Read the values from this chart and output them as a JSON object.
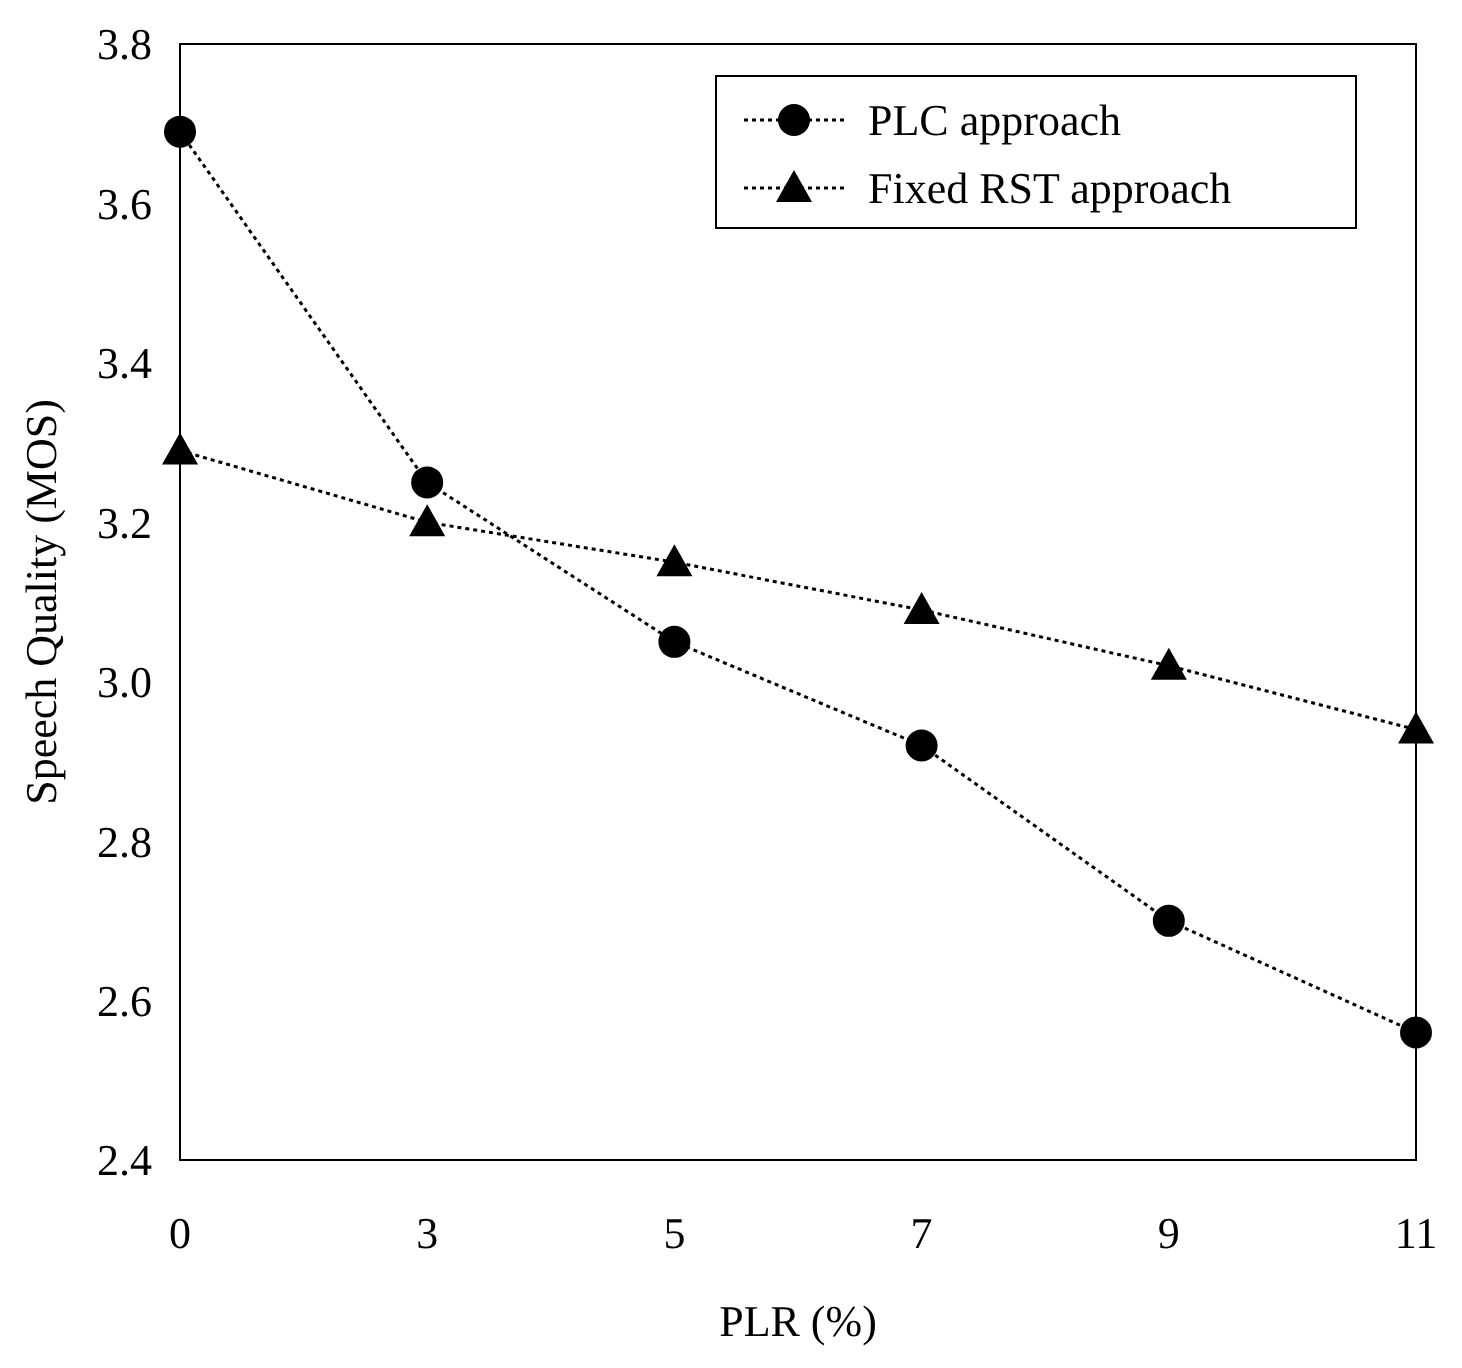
{
  "chart_data": {
    "type": "line",
    "xlabel": "PLR (%)",
    "ylabel": "Speech Quality (MOS)",
    "categories": [
      "0",
      "3",
      "5",
      "7",
      "9",
      "11"
    ],
    "series": [
      {
        "name": "PLC approach",
        "color": "#000000",
        "marker": "circle",
        "values": [
          3.69,
          3.25,
          3.05,
          2.92,
          2.7,
          2.56
        ]
      },
      {
        "name": "Fixed RST approach",
        "color": "#000000",
        "marker": "triangle",
        "values": [
          3.29,
          3.2,
          3.15,
          3.09,
          3.02,
          2.94
        ]
      }
    ],
    "ylim": [
      2.4,
      3.8
    ],
    "yticks": [
      {
        "value": 2.4,
        "label": "2.4"
      },
      {
        "value": 2.6,
        "label": "2.6"
      },
      {
        "value": 2.8,
        "label": "2.8"
      },
      {
        "value": 3.0,
        "label": "3.0"
      },
      {
        "value": 3.2,
        "label": "3.2"
      },
      {
        "value": 3.4,
        "label": "3.4"
      },
      {
        "value": 3.6,
        "label": "3.6"
      },
      {
        "value": 3.8,
        "label": "3.8"
      }
    ],
    "grid": false,
    "legend": "top right",
    "line_style": "dotted"
  }
}
